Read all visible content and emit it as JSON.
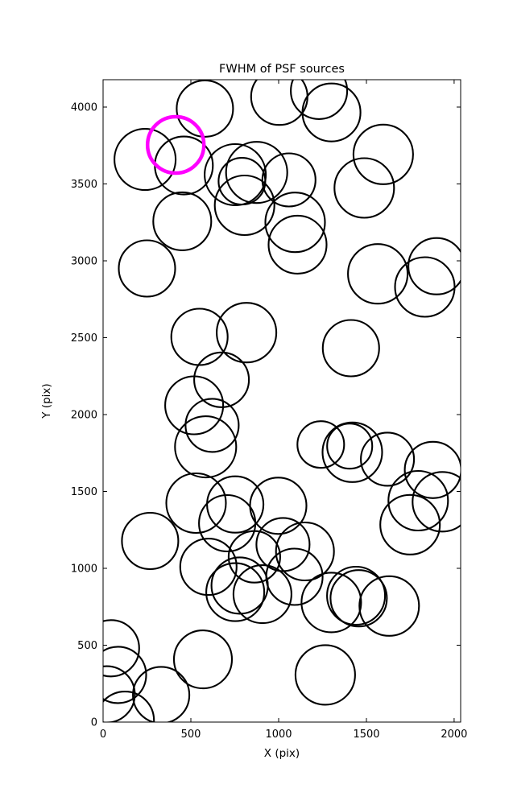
{
  "chart_data": {
    "type": "scatter",
    "title": "FWHM of PSF sources",
    "xlabel": "X (pix)",
    "ylabel": "Y (pix)",
    "xlim": [
      0,
      2037
    ],
    "ylim": [
      0,
      4178
    ],
    "xticks": [
      0,
      500,
      1000,
      1500,
      2000
    ],
    "yticks": [
      0,
      500,
      1000,
      1500,
      2000,
      2500,
      3000,
      3500,
      4000
    ],
    "grid": false,
    "legend": "none",
    "marker_color": "#000000",
    "highlight_color": "#ff00ff",
    "marker_stroke_px": 2.1,
    "highlight_stroke_px": 4.5,
    "highlight_source": {
      "x": 414,
      "y": 3754,
      "r": 35
    },
    "sources": [
      {
        "x": 580,
        "y": 3990,
        "r": 35
      },
      {
        "x": 1004,
        "y": 4067,
        "r": 35
      },
      {
        "x": 1230,
        "y": 4105,
        "r": 35
      },
      {
        "x": 1301,
        "y": 3965,
        "r": 36
      },
      {
        "x": 1596,
        "y": 3692,
        "r": 37
      },
      {
        "x": 1488,
        "y": 3474,
        "r": 37
      },
      {
        "x": 239,
        "y": 3659,
        "r": 38
      },
      {
        "x": 460,
        "y": 3620,
        "r": 36
      },
      {
        "x": 753,
        "y": 3560,
        "r": 38
      },
      {
        "x": 791,
        "y": 3518,
        "r": 29
      },
      {
        "x": 875,
        "y": 3575,
        "r": 38
      },
      {
        "x": 1059,
        "y": 3526,
        "r": 33
      },
      {
        "x": 806,
        "y": 3361,
        "r": 37
      },
      {
        "x": 1094,
        "y": 3250,
        "r": 37
      },
      {
        "x": 1108,
        "y": 3105,
        "r": 36
      },
      {
        "x": 451,
        "y": 3257,
        "r": 36
      },
      {
        "x": 250,
        "y": 2950,
        "r": 35
      },
      {
        "x": 1565,
        "y": 2915,
        "r": 37
      },
      {
        "x": 1833,
        "y": 2830,
        "r": 37
      },
      {
        "x": 1900,
        "y": 2965,
        "r": 35
      },
      {
        "x": 549,
        "y": 2505,
        "r": 35
      },
      {
        "x": 817,
        "y": 2533,
        "r": 37
      },
      {
        "x": 675,
        "y": 2226,
        "r": 34
      },
      {
        "x": 519,
        "y": 2060,
        "r": 36
      },
      {
        "x": 1412,
        "y": 2432,
        "r": 35
      },
      {
        "x": 621,
        "y": 1930,
        "r": 33
      },
      {
        "x": 584,
        "y": 1790,
        "r": 38
      },
      {
        "x": 530,
        "y": 1424,
        "r": 37
      },
      {
        "x": 753,
        "y": 1415,
        "r": 35
      },
      {
        "x": 998,
        "y": 1407,
        "r": 35
      },
      {
        "x": 707,
        "y": 1293,
        "r": 35
      },
      {
        "x": 268,
        "y": 1178,
        "r": 35
      },
      {
        "x": 1240,
        "y": 1805,
        "r": 29
      },
      {
        "x": 1405,
        "y": 1795,
        "r": 28
      },
      {
        "x": 1420,
        "y": 1755,
        "r": 37
      },
      {
        "x": 1620,
        "y": 1710,
        "r": 33
      },
      {
        "x": 1879,
        "y": 1640,
        "r": 35
      },
      {
        "x": 1933,
        "y": 1433,
        "r": 37
      },
      {
        "x": 1795,
        "y": 1440,
        "r": 37
      },
      {
        "x": 1749,
        "y": 1284,
        "r": 37
      },
      {
        "x": 600,
        "y": 1010,
        "r": 35
      },
      {
        "x": 753,
        "y": 845,
        "r": 36
      },
      {
        "x": 778,
        "y": 888,
        "r": 35
      },
      {
        "x": 908,
        "y": 832,
        "r": 36
      },
      {
        "x": 862,
        "y": 1075,
        "r": 32
      },
      {
        "x": 1025,
        "y": 1155,
        "r": 33
      },
      {
        "x": 1090,
        "y": 945,
        "r": 35
      },
      {
        "x": 1150,
        "y": 1110,
        "r": 36
      },
      {
        "x": 1300,
        "y": 778,
        "r": 37
      },
      {
        "x": 1441,
        "y": 822,
        "r": 36
      },
      {
        "x": 1456,
        "y": 805,
        "r": 35
      },
      {
        "x": 1630,
        "y": 755,
        "r": 37
      },
      {
        "x": 569,
        "y": 408,
        "r": 36
      },
      {
        "x": 1266,
        "y": 307,
        "r": 37
      },
      {
        "x": 331,
        "y": 176,
        "r": 35
      },
      {
        "x": 45,
        "y": 480,
        "r": 35
      },
      {
        "x": 85,
        "y": 307,
        "r": 35
      },
      {
        "x": 20,
        "y": 180,
        "r": 35
      },
      {
        "x": 125,
        "y": 10,
        "r": 36
      }
    ]
  }
}
